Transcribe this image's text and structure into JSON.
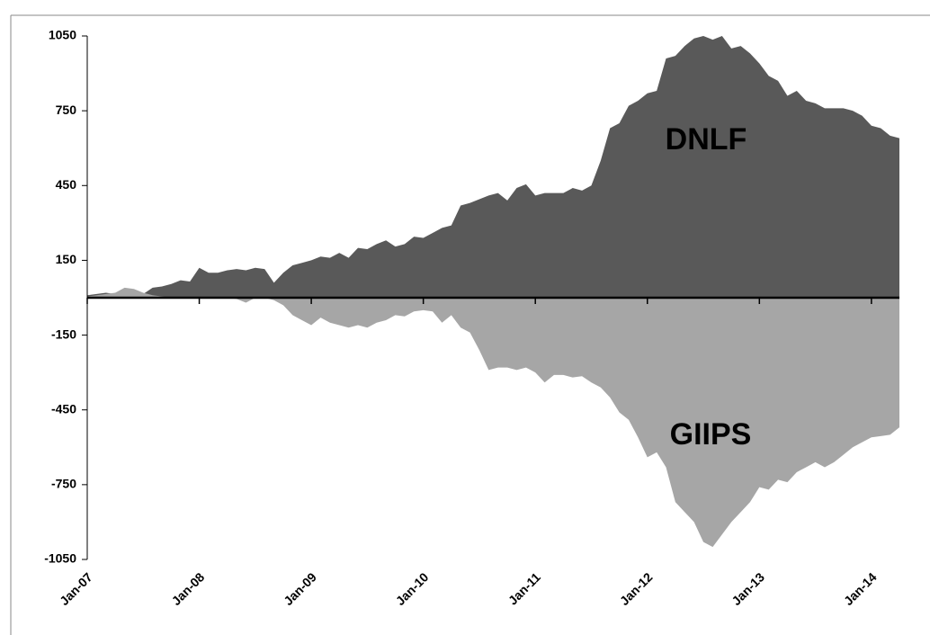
{
  "chart_data": {
    "type": "area",
    "categories": [
      "Jan-07",
      null,
      null,
      null,
      null,
      null,
      null,
      null,
      null,
      null,
      null,
      null,
      "Jan-08",
      null,
      null,
      null,
      null,
      null,
      null,
      null,
      null,
      null,
      null,
      null,
      "Jan-09",
      null,
      null,
      null,
      null,
      null,
      null,
      null,
      null,
      null,
      null,
      null,
      "Jan-10",
      null,
      null,
      null,
      null,
      null,
      null,
      null,
      null,
      null,
      null,
      null,
      "Jan-11",
      null,
      null,
      null,
      null,
      null,
      null,
      null,
      null,
      null,
      null,
      null,
      "Jan-12",
      null,
      null,
      null,
      null,
      null,
      null,
      null,
      null,
      null,
      null,
      null,
      "Jan-13",
      null,
      null,
      null,
      null,
      null,
      null,
      null,
      null,
      null,
      null,
      null,
      "Jan-14",
      null,
      null,
      null
    ],
    "series": [
      {
        "name": "DNLF",
        "color": "#595959",
        "values": [
          10,
          15,
          20,
          15,
          20,
          15,
          15,
          40,
          45,
          55,
          70,
          65,
          120,
          100,
          100,
          110,
          115,
          110,
          120,
          115,
          60,
          100,
          130,
          140,
          150,
          165,
          160,
          180,
          160,
          200,
          195,
          215,
          230,
          205,
          215,
          245,
          240,
          260,
          280,
          290,
          370,
          380,
          395,
          410,
          420,
          390,
          440,
          455,
          410,
          420,
          420,
          420,
          440,
          430,
          450,
          550,
          680,
          700,
          770,
          790,
          820,
          830,
          960,
          970,
          1010,
          1040,
          1050,
          1035,
          1050,
          1000,
          1010,
          980,
          940,
          890,
          870,
          810,
          830,
          790,
          780,
          760,
          760,
          760,
          750,
          730,
          690,
          680,
          650,
          640
        ]
      },
      {
        "name": "GIIPS",
        "color": "#a6a6a6",
        "values": [
          5,
          10,
          15,
          20,
          40,
          35,
          20,
          10,
          5,
          0,
          0,
          0,
          0,
          0,
          0,
          0,
          -5,
          -20,
          0,
          0,
          -10,
          -30,
          -70,
          -90,
          -110,
          -80,
          -100,
          -110,
          -120,
          -110,
          -120,
          -100,
          -90,
          -70,
          -75,
          -55,
          -50,
          -55,
          -100,
          -70,
          -120,
          -140,
          -210,
          -290,
          -280,
          -280,
          -290,
          -280,
          -300,
          -340,
          -310,
          -310,
          -320,
          -315,
          -340,
          -360,
          -400,
          -460,
          -490,
          -560,
          -640,
          -620,
          -680,
          -820,
          -860,
          -900,
          -980,
          -1000,
          -950,
          -900,
          -860,
          -820,
          -760,
          -770,
          -730,
          -740,
          -700,
          -680,
          -660,
          -680,
          -660,
          -630,
          -600,
          -580,
          -560,
          -555,
          -550,
          -520
        ]
      }
    ],
    "ylim": [
      -1050,
      1050
    ],
    "yticks": [
      1050,
      750,
      450,
      150,
      -150,
      -450,
      -750,
      -1050
    ],
    "grid": false
  }
}
